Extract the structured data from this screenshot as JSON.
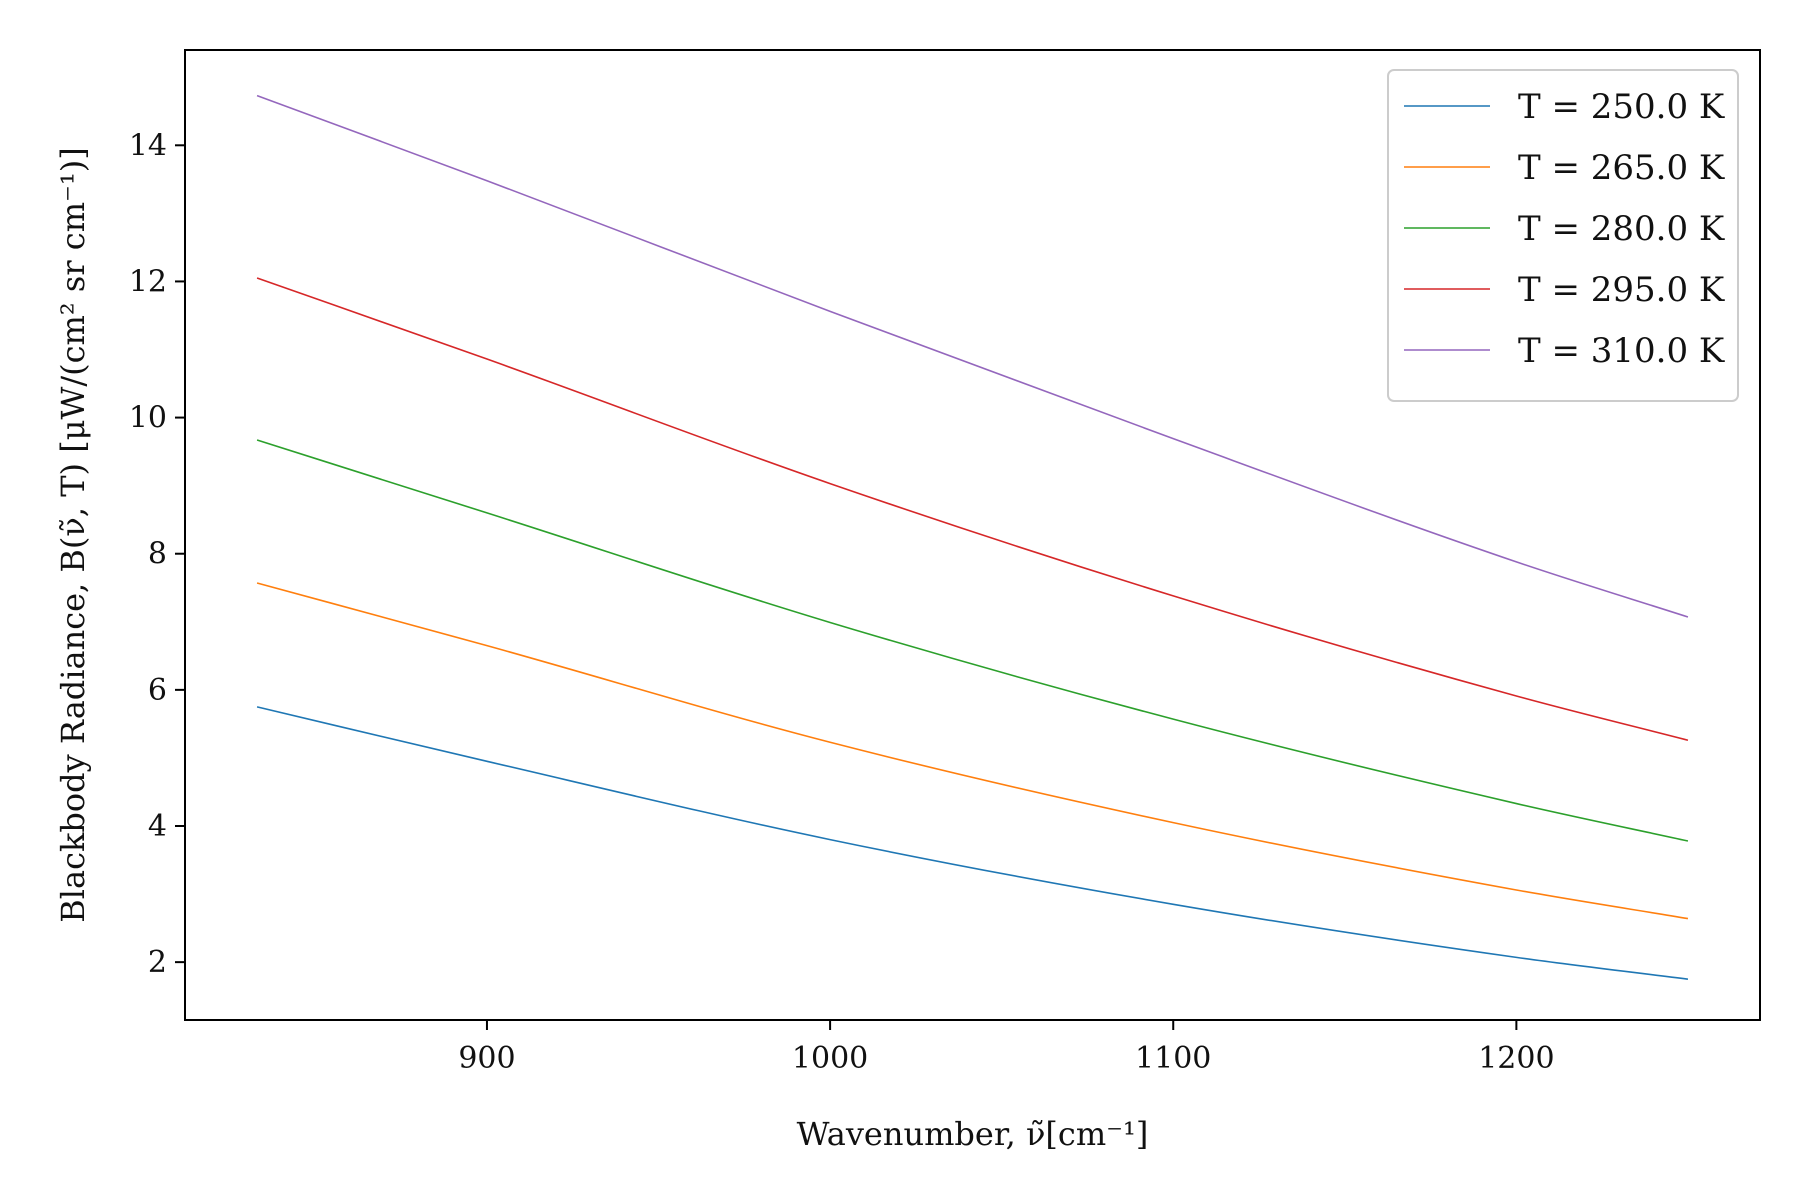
{
  "chart_data": {
    "type": "line",
    "xlabel": "Wavenumber, ν̃[cm⁻¹]",
    "ylabel": "Blackbody Radiance, B(ν̃, T) [μW/(cm² sr cm⁻¹)]",
    "xlim": [
      812,
      1271
    ],
    "ylim": [
      1.15,
      15.4
    ],
    "xticks": [
      900,
      1000,
      1100,
      1200
    ],
    "yticks": [
      2,
      4,
      6,
      8,
      10,
      12,
      14
    ],
    "grid": false,
    "legend_position": "top-right",
    "x": [
      833,
      900,
      1000,
      1100,
      1200,
      1250
    ],
    "series": [
      {
        "name": "T = 250.0 K",
        "color": "#1f77b4",
        "values": [
          5.75,
          4.95,
          3.8,
          2.85,
          2.07,
          1.75
        ]
      },
      {
        "name": "T = 265.0 K",
        "color": "#ff7f0e",
        "values": [
          7.57,
          6.65,
          5.23,
          4.05,
          3.06,
          2.64
        ]
      },
      {
        "name": "T = 280.0 K",
        "color": "#2ca02c",
        "values": [
          9.67,
          8.6,
          6.99,
          5.57,
          4.33,
          3.78
        ]
      },
      {
        "name": "T = 295.0 K",
        "color": "#d62728",
        "values": [
          12.05,
          10.86,
          9.03,
          7.38,
          5.91,
          5.26
        ]
      },
      {
        "name": "T = 310.0 K",
        "color": "#9467bd",
        "values": [
          14.73,
          13.48,
          11.56,
          9.69,
          7.88,
          7.07
        ]
      }
    ]
  }
}
